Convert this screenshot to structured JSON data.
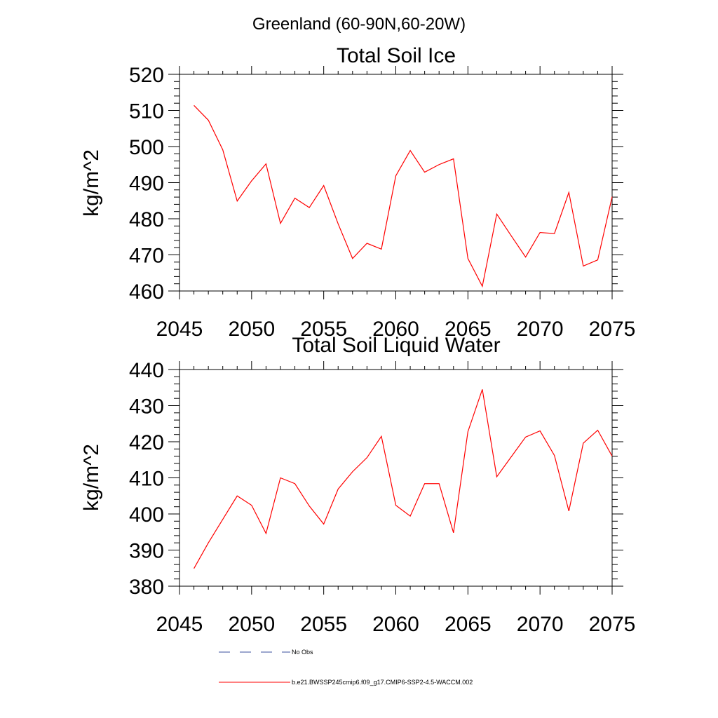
{
  "figure": {
    "title": "Greenland (60-90N,60-20W)"
  },
  "chart_data": [
    {
      "type": "line",
      "title": "Total Soil Ice",
      "ylabel": "kg/m^2",
      "xlabel": "",
      "xlim": [
        2045,
        2075
      ],
      "ylim": [
        460,
        520
      ],
      "x_ticks": [
        2045,
        2050,
        2055,
        2060,
        2065,
        2070,
        2075
      ],
      "y_ticks": [
        460,
        470,
        480,
        490,
        500,
        510,
        520
      ],
      "grid": false,
      "series": [
        {
          "color": "#ff0000",
          "x": [
            2046,
            2047,
            2048,
            2049,
            2050,
            2051,
            2052,
            2053,
            2054,
            2055,
            2056,
            2057,
            2058,
            2059,
            2060,
            2061,
            2062,
            2063,
            2064,
            2065,
            2066,
            2067,
            2068,
            2069,
            2070,
            2071,
            2072,
            2073,
            2074,
            2075
          ],
          "values": [
            511.4,
            507.3,
            499.1,
            484.9,
            490.5,
            495.2,
            478.7,
            485.7,
            483.1,
            489.2,
            478.6,
            469.0,
            473.2,
            471.6,
            491.9,
            498.9,
            492.9,
            495.0,
            496.6,
            469.0,
            461.3,
            481.3,
            475.3,
            469.4,
            476.2,
            475.9,
            487.3,
            466.9,
            468.6,
            486.1
          ]
        }
      ]
    },
    {
      "type": "line",
      "title": "Total Soil Liquid Water",
      "ylabel": "kg/m^2",
      "xlabel": "",
      "xlim": [
        2045,
        2075
      ],
      "ylim": [
        380,
        440
      ],
      "x_ticks": [
        2045,
        2050,
        2055,
        2060,
        2065,
        2070,
        2075
      ],
      "y_ticks": [
        380,
        390,
        400,
        410,
        420,
        430,
        440
      ],
      "grid": false,
      "series": [
        {
          "color": "#ff0000",
          "x": [
            2046,
            2047,
            2048,
            2049,
            2050,
            2051,
            2052,
            2053,
            2054,
            2055,
            2056,
            2057,
            2058,
            2059,
            2060,
            2061,
            2062,
            2063,
            2064,
            2065,
            2066,
            2067,
            2068,
            2069,
            2070,
            2071,
            2072,
            2073,
            2074,
            2075
          ],
          "values": [
            384.9,
            392.0,
            398.5,
            405.0,
            402.4,
            394.6,
            410.0,
            408.4,
            402.2,
            397.2,
            406.9,
            411.7,
            415.6,
            421.5,
            402.4,
            399.4,
            408.4,
            408.4,
            394.8,
            422.8,
            434.5,
            410.3,
            415.8,
            421.3,
            423.0,
            416.2,
            400.8,
            419.6,
            423.2,
            416.0
          ]
        }
      ]
    }
  ],
  "legend": {
    "placement": "bottom",
    "entries": [
      {
        "label": "No Obs",
        "color": "#3a4f9c",
        "dash": "dashed"
      },
      {
        "label": "b.e21.BWSSP245cmip6.f09_g17.CMIP6-SSP2-4.5-WACCM.002",
        "color": "#ff0000",
        "dash": "solid"
      }
    ]
  }
}
